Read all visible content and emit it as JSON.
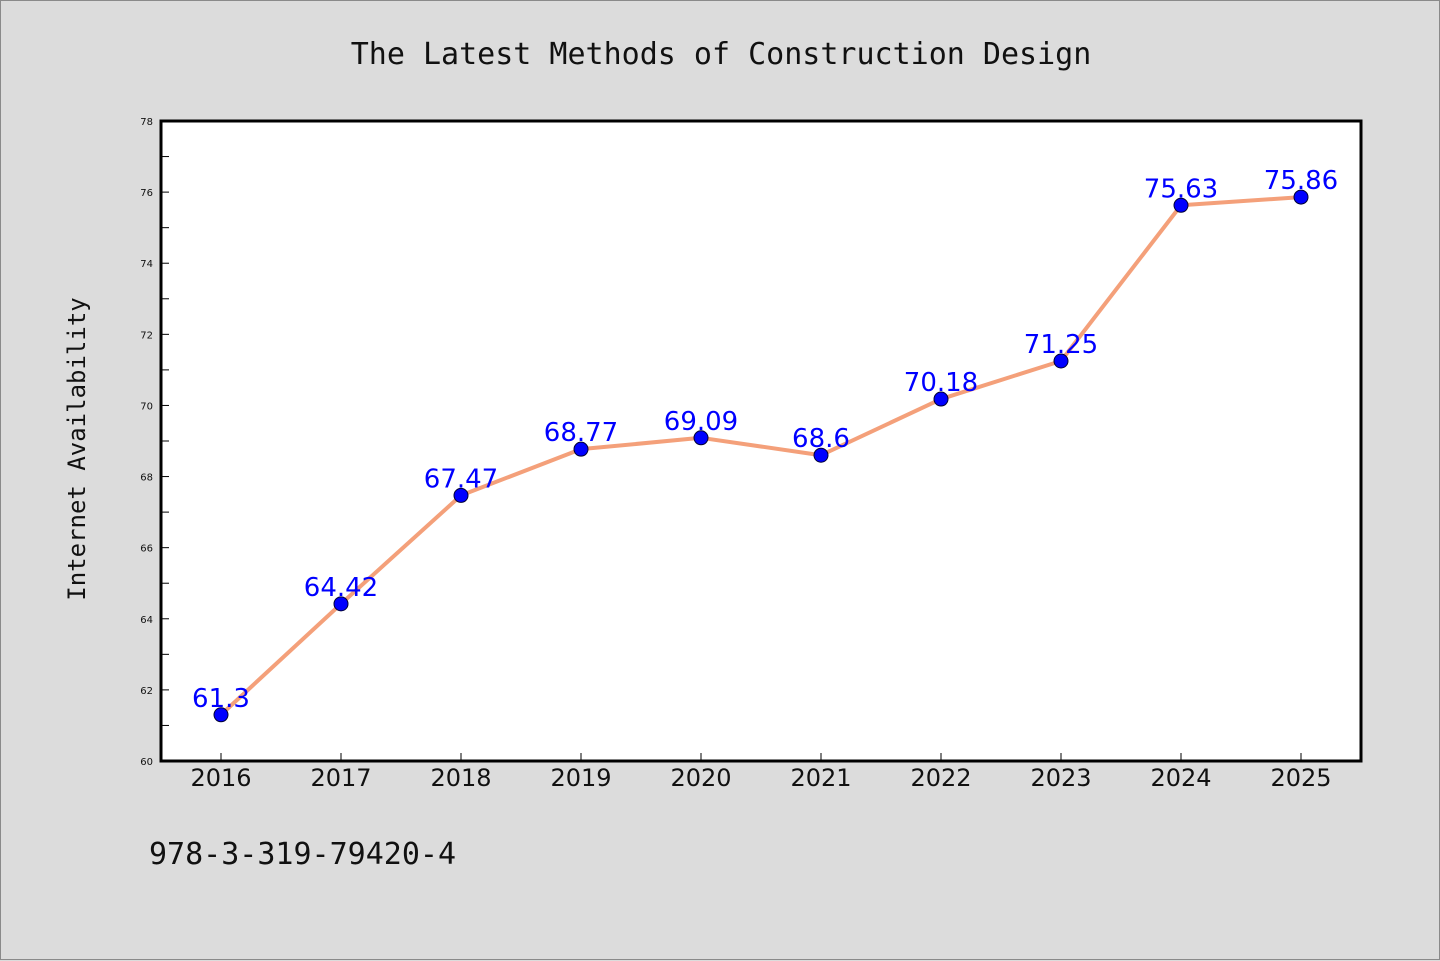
{
  "chart_data": {
    "type": "line",
    "title": "The Latest Methods of Construction Design",
    "xlabel": "",
    "ylabel": "Internet Availability",
    "categories": [
      "2016",
      "2017",
      "2018",
      "2019",
      "2020",
      "2021",
      "2022",
      "2023",
      "2024",
      "2025"
    ],
    "series": [
      {
        "values": [
          61.3,
          64.42,
          67.47,
          68.77,
          69.09,
          68.6,
          70.18,
          71.25,
          75.63,
          75.86
        ],
        "data_labels": [
          "61.3",
          "64.42",
          "67.47",
          "68.77",
          "69.09",
          "68.6",
          "70.18",
          "71.25",
          "75.63",
          "75.86"
        ]
      }
    ],
    "ylim": [
      60,
      78
    ],
    "yticks": [
      "60",
      "62",
      "64",
      "66",
      "68",
      "70",
      "72",
      "74",
      "76",
      "78"
    ],
    "grid": false,
    "colors": {
      "line": "#f4a07a",
      "marker": "#0000ff",
      "data_label": "#0000ff",
      "background": "#dcdcdc",
      "plot_background": "#ffffff"
    }
  },
  "footer": {
    "text": "978-3-319-79420-4"
  }
}
